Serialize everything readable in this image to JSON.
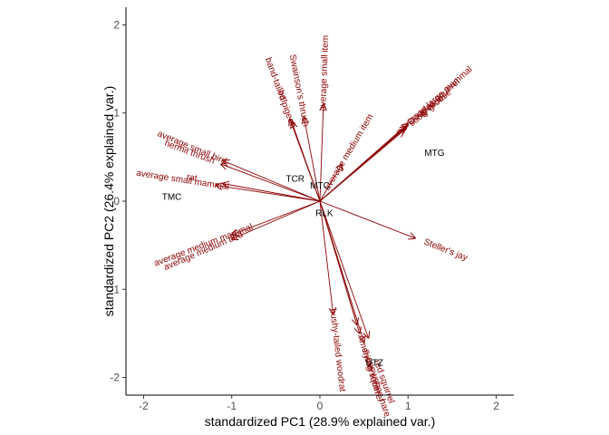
{
  "chart_data": {
    "type": "scatter",
    "title": "",
    "xlabel": "standardized PC1 (28.9% explained var.)",
    "ylabel": "standardized PC2 (26.4% explained var.)",
    "xlim": [
      -2.2,
      2.2
    ],
    "ylim": [
      -2.2,
      2.2
    ],
    "xticks": [
      -2,
      -1,
      0,
      1,
      2
    ],
    "yticks": [
      -2,
      -1,
      0,
      1,
      2
    ],
    "grid": false,
    "legend": "none",
    "colors": {
      "loading_vector": "#8b0000",
      "observation": "#000000",
      "axis": "#000000"
    },
    "observations": [
      {
        "label": "TCR",
        "x": -0.28,
        "y": 0.25
      },
      {
        "label": "MTC",
        "x": 0.0,
        "y": 0.17
      },
      {
        "label": "TMC",
        "x": -1.68,
        "y": 0.04
      },
      {
        "label": "RLK",
        "x": 0.05,
        "y": -0.14
      },
      {
        "label": "MTG",
        "x": 1.3,
        "y": 0.54
      },
      {
        "label": "UTZ",
        "x": 0.62,
        "y": -1.84
      }
    ],
    "loadings": [
      {
        "label": "average small item",
        "x": 0.04,
        "y": 1.1
      },
      {
        "label": "Swainson's thrush",
        "x": -0.18,
        "y": 0.95
      },
      {
        "label": "band-tailed pigeon",
        "x": -0.34,
        "y": 0.93
      },
      {
        "label": "bat",
        "x": -0.32,
        "y": 0.9
      },
      {
        "label": "average small bird",
        "x": -1.1,
        "y": 0.46
      },
      {
        "label": "hermit thrush",
        "x": -1.12,
        "y": 0.42
      },
      {
        "label": "rat",
        "x": -1.1,
        "y": 0.2
      },
      {
        "label": "average small mammal",
        "x": -1.18,
        "y": 0.18
      },
      {
        "label": "average medium mammal",
        "x": -1.0,
        "y": -0.38
      },
      {
        "label": "average medium bird",
        "x": -1.0,
        "y": -0.43
      },
      {
        "label": "average medium item",
        "x": 0.25,
        "y": 0.42
      },
      {
        "label": "sooty grouse",
        "x": 0.95,
        "y": 0.8
      },
      {
        "label": "Douglas squirrel",
        "x": 0.98,
        "y": 0.85
      },
      {
        "label": "grouse",
        "x": 0.96,
        "y": 0.82
      },
      {
        "label": "average large mammal",
        "x": 1.0,
        "y": 0.88
      },
      {
        "label": "Steller's jay",
        "x": 1.08,
        "y": -0.42
      },
      {
        "label": "American robin",
        "x": 0.42,
        "y": -1.4
      },
      {
        "label": "bushy-tailed woodrat",
        "x": 0.15,
        "y": -1.28
      },
      {
        "label": "flying squirrel",
        "x": 0.45,
        "y": -1.5
      },
      {
        "label": "snowshoe hare",
        "x": 0.5,
        "y": -1.6
      },
      {
        "label": "red squirrel",
        "x": 0.55,
        "y": -1.55
      }
    ]
  }
}
